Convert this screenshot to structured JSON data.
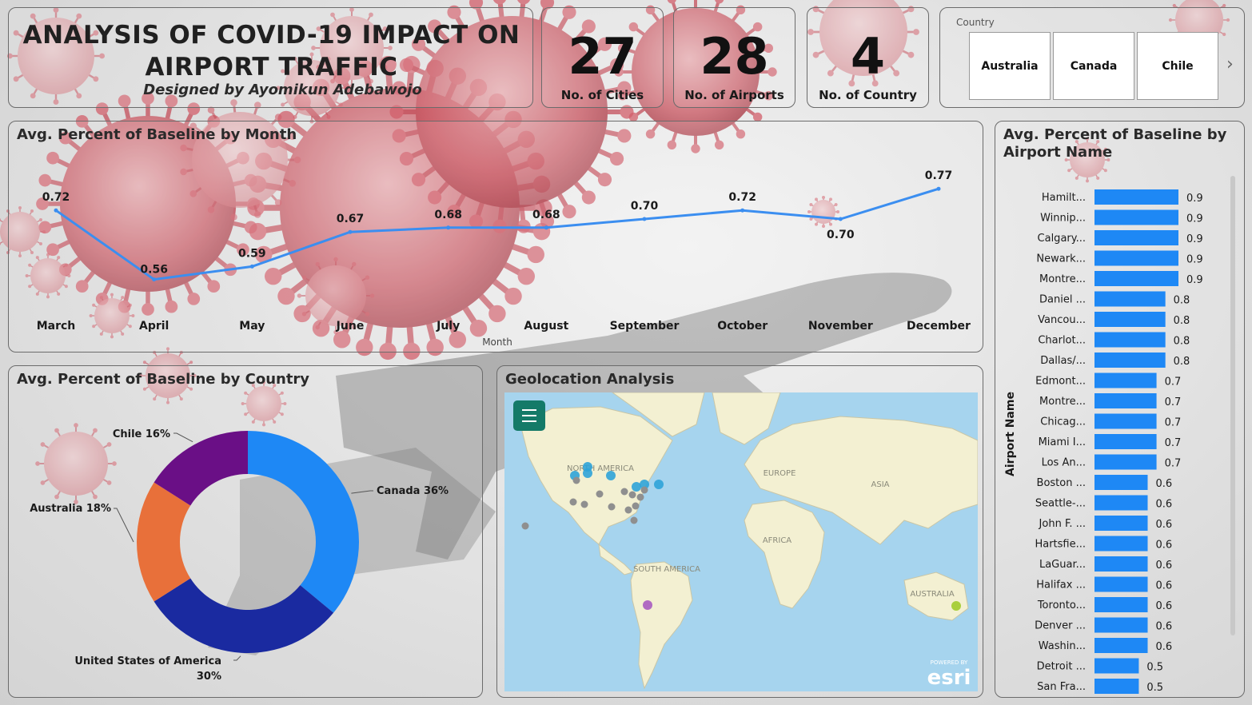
{
  "header": {
    "title_line1": "ANALYSIS OF COVID-19 IMPACT ON",
    "title_line2": "AIRPORT TRAFFIC",
    "designer": "Designed by Ayomikun Adebawojo"
  },
  "kpis": [
    {
      "value": "27",
      "label": "No. of Cities"
    },
    {
      "value": "28",
      "label": "No. of Airports"
    },
    {
      "value": "4",
      "label": "No. of Country"
    }
  ],
  "slicer": {
    "label": "Country",
    "options": [
      "Australia",
      "Canada",
      "Chile"
    ],
    "next_icon": "chevron-right-icon"
  },
  "month_chart": {
    "title": "Avg. Percent of Baseline by Month",
    "xlabel": "Month"
  },
  "country_chart": {
    "title": "Avg. Percent of Baseline by Country"
  },
  "geo": {
    "title": "Geolocation Analysis",
    "labels": [
      "NORTH AMERICA",
      "EUROPE",
      "ASIA",
      "AFRICA",
      "SOUTH AMERICA",
      "AUSTRALIA"
    ],
    "powered_by": "POWERED BY",
    "brand": "esri",
    "menu_icon": "hamburger-menu-icon"
  },
  "airport_chart": {
    "title_line1": "Avg. Percent of Baseline by",
    "title_line2": "Airport Name",
    "ylabel": "Airport Name"
  },
  "colors": {
    "line": "#3b8ef0",
    "bar": "#1e88f5",
    "canada": "#1e88f5",
    "usa": "#1a2aa0",
    "australia": "#e8703a",
    "chile": "#6a0f86",
    "map_water": "#a6d4ee",
    "map_land": "#f3f0d2",
    "map_menu": "#147a68"
  },
  "chart_data": [
    {
      "type": "line",
      "title": "Avg. Percent of Baseline by Month",
      "xlabel": "Month",
      "categories": [
        "March",
        "April",
        "May",
        "June",
        "July",
        "August",
        "September",
        "October",
        "November",
        "December"
      ],
      "values": [
        0.72,
        0.56,
        0.59,
        0.67,
        0.68,
        0.68,
        0.7,
        0.72,
        0.7,
        0.77
      ],
      "labels": [
        "0.72",
        "0.56",
        "0.59",
        "0.67",
        "0.68",
        "0.68",
        "0.70",
        "0.72",
        "0.70",
        "0.77"
      ],
      "ylim": [
        0.5,
        0.8
      ]
    },
    {
      "type": "pie",
      "title": "Avg. Percent of Baseline by Country",
      "slices": [
        {
          "name": "Canada",
          "percent": 36,
          "label": "Canada 36%"
        },
        {
          "name": "United States of America",
          "percent": 30,
          "label": "United States of America",
          "label2": "30%"
        },
        {
          "name": "Australia",
          "percent": 18,
          "label": "Australia 18%"
        },
        {
          "name": "Chile",
          "percent": 16,
          "label": "Chile 16%"
        }
      ]
    },
    {
      "type": "bar",
      "orientation": "horizontal",
      "title": "Avg. Percent of Baseline by Airport Name",
      "ylabel": "Airport Name",
      "categories": [
        "Hamilt...",
        "Winnip...",
        "Calgary...",
        "Newark...",
        "Montre...",
        "Daniel ...",
        "Vancou...",
        "Charlot...",
        "Dallas/...",
        "Edmont...",
        "Montre...",
        "Chicag...",
        "Miami I...",
        "Los An...",
        "Boston ...",
        "Seattle-...",
        "John F. ...",
        "Hartsfie...",
        "LaGuar...",
        "Halifax ...",
        "Toronto...",
        "Denver ...",
        "Washin...",
        "Detroit ...",
        "San Fra..."
      ],
      "values": [
        0.9,
        0.9,
        0.9,
        0.9,
        0.9,
        0.8,
        0.8,
        0.8,
        0.8,
        0.7,
        0.7,
        0.7,
        0.7,
        0.7,
        0.6,
        0.6,
        0.6,
        0.6,
        0.6,
        0.6,
        0.6,
        0.6,
        0.6,
        0.5,
        0.5
      ],
      "labels": [
        "0.9",
        "0.9",
        "0.9",
        "0.9",
        "0.9",
        "0.8",
        "0.8",
        "0.8",
        "0.8",
        "0.7",
        "0.7",
        "0.7",
        "0.7",
        "0.7",
        "0.6",
        "0.6",
        "0.6",
        "0.6",
        "0.6",
        "0.6",
        "0.6",
        "0.6",
        "0.6",
        "0.5",
        "0.5"
      ]
    }
  ]
}
